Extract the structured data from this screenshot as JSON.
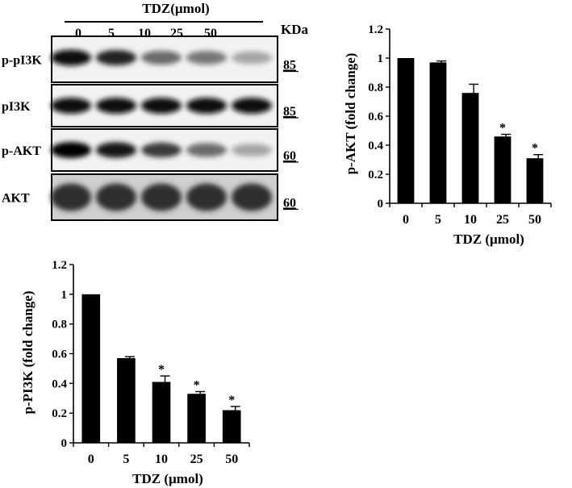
{
  "blot": {
    "treatment_label": "TDZ(µmol)",
    "lanes": [
      "0",
      "5",
      "10",
      "25",
      "50"
    ],
    "mw_unit": "KDa",
    "rows": [
      {
        "name": "p-pI3K",
        "mw": "85",
        "intensity": [
          0.95,
          0.85,
          0.55,
          0.5,
          0.3
        ]
      },
      {
        "name": "pI3K",
        "mw": "85",
        "intensity": [
          0.95,
          0.95,
          0.95,
          0.95,
          0.95
        ]
      },
      {
        "name": "p-AKT",
        "mw": "60",
        "intensity": [
          1.0,
          0.9,
          0.75,
          0.55,
          0.3
        ]
      },
      {
        "name": "AKT",
        "mw": "60",
        "intensity": [
          0.8,
          0.8,
          0.8,
          0.8,
          0.8
        ]
      }
    ]
  },
  "chart_data": [
    {
      "type": "bar",
      "categories": [
        "0",
        "5",
        "10",
        "25",
        "50"
      ],
      "values": [
        1.0,
        0.97,
        0.76,
        0.46,
        0.31
      ],
      "errors": [
        0.0,
        0.01,
        0.06,
        0.015,
        0.025
      ],
      "significant": [
        false,
        false,
        false,
        true,
        true
      ],
      "marker": "*",
      "xlabel": "TDZ (µmol)",
      "ylabel": "p-AKT (fold change)",
      "ylim": [
        0,
        1.2
      ],
      "yticks": [
        "0",
        "0.2",
        "0.4",
        "0.6",
        "0.8",
        "1",
        "1.2"
      ],
      "bar_color": "#000000"
    },
    {
      "type": "bar",
      "categories": [
        "0",
        "5",
        "10",
        "25",
        "50"
      ],
      "values": [
        1.0,
        0.57,
        0.41,
        0.33,
        0.22
      ],
      "errors": [
        0.0,
        0.01,
        0.04,
        0.015,
        0.025
      ],
      "significant": [
        false,
        false,
        true,
        true,
        true
      ],
      "marker": "*",
      "xlabel": "TDZ (µmol)",
      "ylabel": "p-PI3K (fold change)",
      "ylim": [
        0,
        1.2
      ],
      "yticks": [
        "0",
        "0.2",
        "0.4",
        "0.6",
        "0.8",
        "1",
        "1.2"
      ],
      "bar_color": "#000000"
    }
  ]
}
